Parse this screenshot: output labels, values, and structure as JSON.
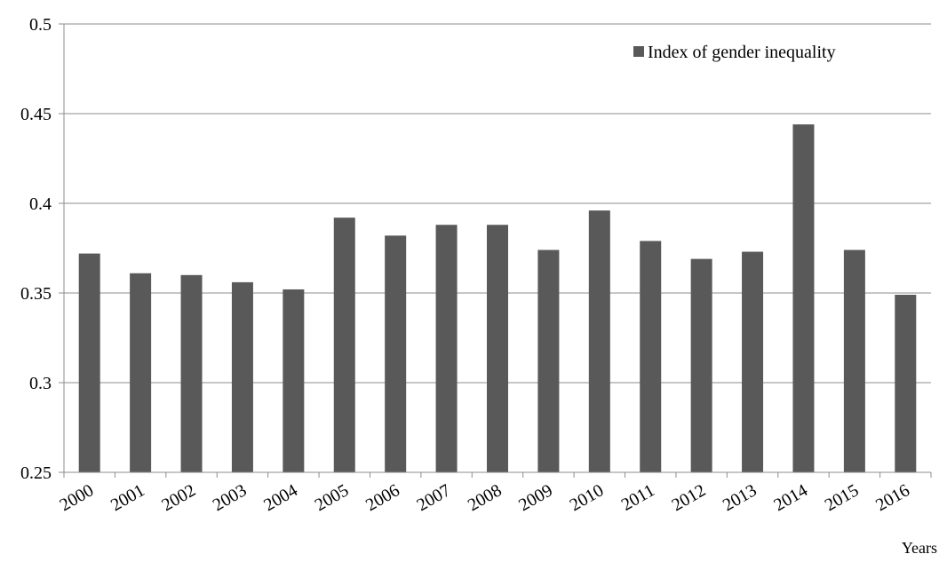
{
  "chart_data": {
    "type": "bar",
    "categories": [
      "2000",
      "2001",
      "2002",
      "2003",
      "2004",
      "2005",
      "2006",
      "2007",
      "2008",
      "2009",
      "2010",
      "2011",
      "2012",
      "2013",
      "2014",
      "2015",
      "2016"
    ],
    "series": [
      {
        "name": "Index of gender inequality",
        "color": "#595959",
        "values": [
          0.372,
          0.361,
          0.36,
          0.356,
          0.352,
          0.392,
          0.382,
          0.388,
          0.388,
          0.374,
          0.396,
          0.379,
          0.369,
          0.373,
          0.444,
          0.374,
          0.349
        ]
      }
    ],
    "y_ticks": [
      "0.25",
      "0.3",
      "0.35",
      "0.4",
      "0.45",
      "0.5"
    ],
    "ylim": [
      0.25,
      0.5
    ],
    "xlabel": "Years",
    "ylabel": "",
    "title": "",
    "legend_position": "top-right",
    "grid": true
  }
}
